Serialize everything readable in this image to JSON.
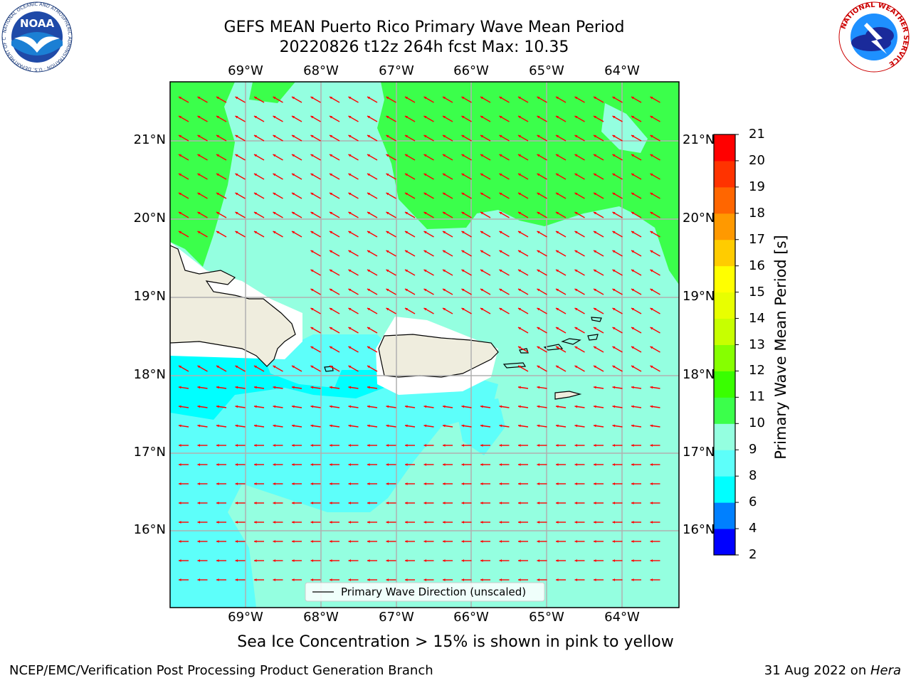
{
  "header": {
    "title_line1": "GEFS MEAN Puerto Rico Primary Wave Mean Period",
    "title_line2": "20220826 t12z 264h fcst   Max: 10.35"
  },
  "logos": {
    "noaa_text": "NOAA",
    "noaa_ring_text": "NATIONAL OCEANIC AND ATMOSPHERIC ADMINISTRATION · U.S. DEPARTMENT OF COMMERCE",
    "nws_ring_text": "NATIONAL WEATHER SERVICE"
  },
  "map": {
    "lon_labels": [
      "69°W",
      "68°W",
      "67°W",
      "66°W",
      "65°W",
      "64°W"
    ],
    "lat_labels": [
      "21°N",
      "20°N",
      "19°N",
      "18°N",
      "17°N",
      "16°N"
    ],
    "legend_label": "Primary Wave Direction (unscaled)",
    "colors": {
      "period_6_8": "#00ffff",
      "period_8_9": "#5dfffa",
      "period_9_10": "#94ffe0",
      "period_10_11": "#3bff4b",
      "land": "#efedde",
      "arrow": "#ff0000",
      "grid": "#b0b0b0"
    }
  },
  "colorbar": {
    "label": "Primary Wave Mean Period [s]",
    "ticks": [
      "2",
      "4",
      "6",
      "8",
      "9",
      "10",
      "11",
      "12",
      "13",
      "14",
      "15",
      "16",
      "17",
      "18",
      "19",
      "20",
      "21"
    ],
    "colors": [
      "#0000ff",
      "#0080ff",
      "#00ffff",
      "#5dfffa",
      "#94ffe0",
      "#3bff4b",
      "#39ff00",
      "#86ff00",
      "#c7ff00",
      "#e8ff00",
      "#ffff00",
      "#ffcc00",
      "#ff9900",
      "#ff6600",
      "#ff3300",
      "#ff0000"
    ]
  },
  "notes": {
    "sea_ice": "Sea Ice Concentration > 15% is shown in pink to yellow",
    "footer_left": "NCEP/EMC/Verification Post Processing Product Generation Branch",
    "footer_right_prefix": "31 Aug 2022 on ",
    "footer_right_machine": "Hera"
  }
}
